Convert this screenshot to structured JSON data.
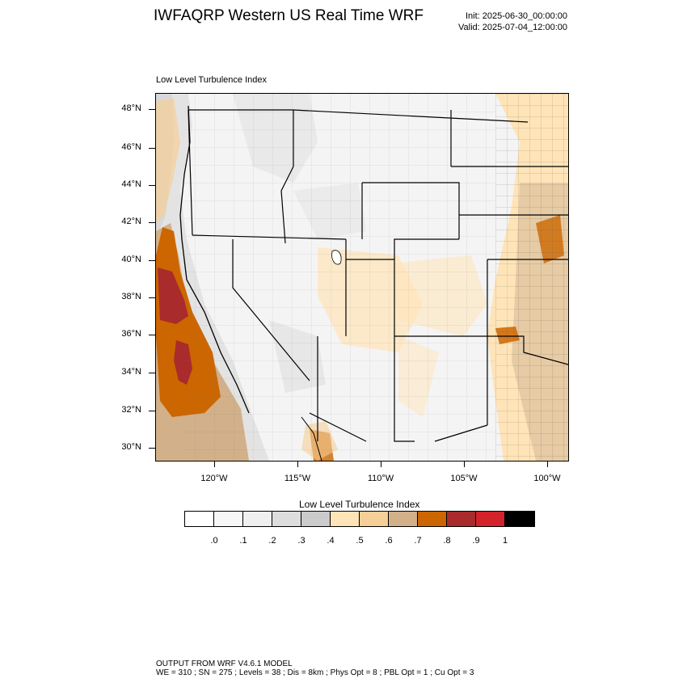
{
  "title": "IWFAQRP Western US Real Time WRF",
  "init": "Init: 2025-06-30_00:00:00",
  "valid": "Valid: 2025-07-04_12:00:00",
  "subtitle": "Low Level Turbulence Index",
  "lat_labels": [
    "48°N",
    "46°N",
    "44°N",
    "42°N",
    "40°N",
    "38°N",
    "36°N",
    "34°N",
    "32°N",
    "30°N"
  ],
  "lon_labels": [
    "120°W",
    "115°W",
    "110°W",
    "105°W",
    "100°W"
  ],
  "colorbar": {
    "title": "Low Level Turbulence Index",
    "colors": [
      "#ffffff",
      "#f7f7f7",
      "#efefef",
      "#dddddd",
      "#cbcbcb",
      "#ffe4b8",
      "#f5cf97",
      "#d2b08a",
      "#cc6600",
      "#a92b2b",
      "#d2232a",
      "#000000"
    ],
    "labels": [
      ".0",
      ".1",
      ".2",
      ".3",
      ".4",
      ".5",
      ".6",
      ".7",
      ".8",
      ".9",
      "1"
    ]
  },
  "footer": {
    "line1": "OUTPUT FROM WRF V4.6.1 MODEL",
    "line2": "WE = 310 ; SN = 275 ; Levels = 38 ; Dis = 8km ; Phys Opt = 8 ; PBL Opt = 1 ; Cu Opt = 3"
  }
}
